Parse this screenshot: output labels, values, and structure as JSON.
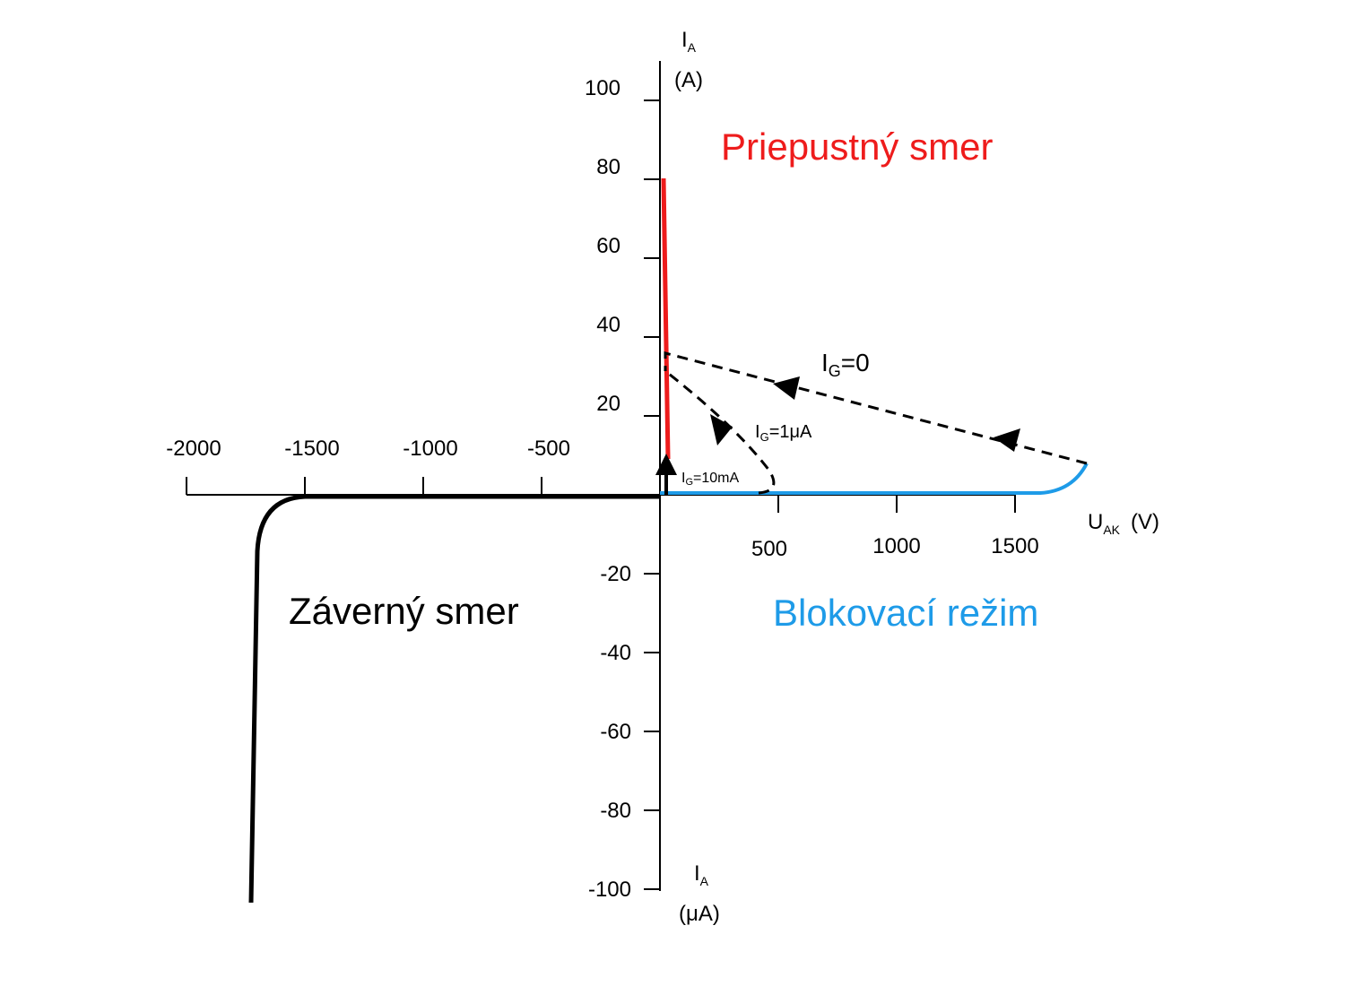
{
  "axis": {
    "x_ticks_negative": [
      "-2000",
      "-1500",
      "-1000",
      "-500"
    ],
    "x_ticks_positive": [
      "500",
      "1000",
      "1500"
    ],
    "y_ticks_positive": [
      "20",
      "40",
      "60",
      "80",
      "100"
    ],
    "y_ticks_negative": [
      "-20",
      "-40",
      "-60",
      "-80",
      "-100"
    ],
    "y_label_top": {
      "symbol": "I",
      "subscript": "A",
      "unit": "(A)"
    },
    "y_label_bottom": {
      "symbol": "I",
      "subscript": "A",
      "unit": "(μA)"
    },
    "x_label": {
      "symbol": "U",
      "subscript": "AK",
      "unit": "(V)"
    }
  },
  "regions": {
    "forward": "Priepustný smer",
    "reverse": "Záverný smer",
    "blocking": "Blokovací režim"
  },
  "curves": [
    {
      "symbol": "I",
      "subscript": "G",
      "value": "=0"
    },
    {
      "symbol": "I",
      "subscript": "G",
      "value": "=1μA"
    },
    {
      "symbol": "I",
      "subscript": "G",
      "value": "=10mA"
    }
  ]
}
